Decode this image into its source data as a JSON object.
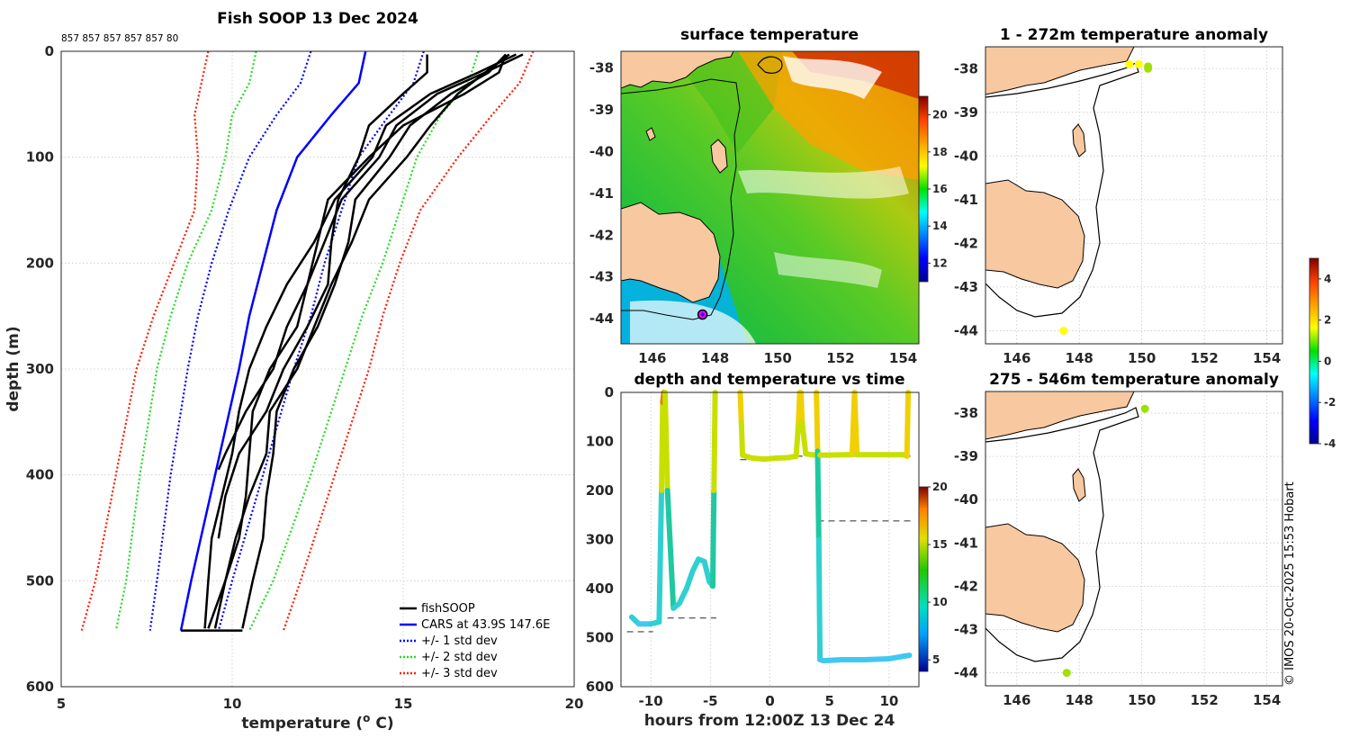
{
  "figure": {
    "copyright": "© IMOS 20-Oct-2025 15:53 Hobart"
  },
  "chart_data": [
    {
      "id": "profile",
      "type": "line",
      "title": "Fish SOOP 13 Dec 2024",
      "probe_ids": "857 857 857 857 857 80",
      "xlabel": "temperature (o C)",
      "ylabel": "depth (m)",
      "xlim": [
        5,
        20
      ],
      "ylim": [
        600,
        0
      ],
      "xticks": [
        "5",
        "10",
        "15",
        "20"
      ],
      "yticks": [
        "0",
        "100",
        "200",
        "300",
        "400",
        "500",
        "600"
      ],
      "legend": [
        "fishSOOP",
        "CARS at 43.9S 147.6E",
        "+/- 1 std dev",
        "+/- 2 std dev",
        "+/- 3 std dev"
      ],
      "colors": {
        "fishsoop": "#000000",
        "cars": "#0000ff",
        "std1": "#0000ff",
        "std2": "#22dd22",
        "std3": "#ff1a00"
      },
      "series": [
        {
          "name": "CARS",
          "depth": [
            0,
            30,
            60,
            100,
            150,
            200,
            250,
            300,
            400,
            500,
            547
          ],
          "temp": [
            13.9,
            13.7,
            12.9,
            11.9,
            11.3,
            10.9,
            10.5,
            10.2,
            9.5,
            8.8,
            8.5
          ]
        },
        {
          "name": "CARS+1",
          "depth": [
            0,
            30,
            60,
            100,
            150,
            200,
            250,
            300,
            400,
            500,
            547
          ],
          "temp": [
            15.6,
            15.3,
            14.6,
            13.7,
            13.2,
            12.7,
            12.3,
            11.8,
            10.9,
            10.0,
            9.6
          ]
        },
        {
          "name": "CARS-1",
          "depth": [
            0,
            30,
            60,
            100,
            150,
            200,
            250,
            300,
            400,
            500,
            547
          ],
          "temp": [
            12.3,
            12.0,
            11.3,
            10.5,
            9.9,
            9.4,
            9.0,
            8.7,
            8.2,
            7.8,
            7.6
          ]
        },
        {
          "name": "CARS+2",
          "depth": [
            0,
            30,
            60,
            100,
            150,
            200,
            250,
            300,
            400,
            500,
            547
          ],
          "temp": [
            17.2,
            16.9,
            16.1,
            15.4,
            14.9,
            14.4,
            13.8,
            13.3,
            12.3,
            11.2,
            10.5
          ]
        },
        {
          "name": "CARS-2",
          "depth": [
            0,
            30,
            60,
            100,
            150,
            200,
            250,
            300,
            400,
            500,
            547
          ],
          "temp": [
            10.7,
            10.5,
            10.0,
            9.8,
            9.4,
            8.7,
            8.2,
            7.8,
            7.3,
            6.9,
            6.6
          ]
        },
        {
          "name": "CARS+3",
          "depth": [
            0,
            30,
            60,
            100,
            150,
            200,
            250,
            300,
            400,
            500,
            547
          ],
          "temp": [
            18.8,
            18.4,
            17.6,
            16.6,
            15.5,
            14.9,
            14.4,
            14.0,
            13.0,
            12.0,
            11.5
          ]
        },
        {
          "name": "CARS-3",
          "depth": [
            0,
            30,
            60,
            100,
            150,
            200,
            250,
            300,
            400,
            500,
            547
          ],
          "temp": [
            9.3,
            9.1,
            8.9,
            9.0,
            8.9,
            8.3,
            7.7,
            7.2,
            6.6,
            6.0,
            5.6
          ]
        },
        {
          "name": "fishSOOP-1",
          "depth": [
            3,
            20,
            40,
            70,
            100,
            140,
            180,
            220,
            260,
            300,
            340,
            380,
            420,
            460,
            500,
            545
          ],
          "temp": [
            18.0,
            17.5,
            16.4,
            15.2,
            14.6,
            13.6,
            13.4,
            13.0,
            12.5,
            11.8,
            11.3,
            11.2,
            11.0,
            10.9,
            10.6,
            10.3
          ]
        },
        {
          "name": "fishSOOP-2",
          "depth": [
            3,
            20,
            40,
            70,
            100,
            140,
            180,
            220,
            260,
            300,
            340,
            380,
            420,
            460,
            500,
            545
          ],
          "temp": [
            18.1,
            17.4,
            16.0,
            14.8,
            14.3,
            13.2,
            12.7,
            12.2,
            11.9,
            11.1,
            10.6,
            10.5,
            10.4,
            10.2,
            9.8,
            9.5
          ]
        },
        {
          "name": "fishSOOP-3",
          "depth": [
            3,
            20,
            40,
            70,
            100,
            140,
            180,
            220,
            260,
            300,
            340,
            380,
            420,
            460,
            500,
            545
          ],
          "temp": [
            18.3,
            17.2,
            15.8,
            14.5,
            14.1,
            13.0,
            12.4,
            11.6,
            11.0,
            10.5,
            10.2,
            10.0,
            9.7,
            9.4,
            9.3,
            9.2
          ]
        },
        {
          "name": "fishSOOP-4",
          "depth": [
            3,
            20,
            40,
            70,
            100,
            140,
            180,
            220,
            260,
            300,
            340,
            380,
            420,
            460
          ],
          "temp": [
            15.7,
            15.7,
            15.0,
            14.0,
            13.7,
            13.1,
            12.9,
            12.8,
            12.2,
            11.5,
            11.0,
            10.2,
            9.8,
            9.6
          ]
        },
        {
          "name": "fishSOOP-5",
          "depth": [
            3,
            20,
            40,
            70,
            100,
            140,
            180,
            220,
            260,
            300,
            340,
            380,
            395
          ],
          "temp": [
            18.0,
            17.8,
            16.8,
            15.0,
            14.0,
            12.8,
            12.5,
            12.2,
            11.6,
            11.2,
            10.4,
            9.8,
            9.6
          ]
        },
        {
          "name": "fishSOOP-6",
          "depth": [
            3,
            20,
            40,
            70,
            100,
            140,
            180,
            220,
            260,
            300,
            340,
            380,
            420,
            460,
            500,
            545
          ],
          "temp": [
            18.5,
            17.4,
            16.6,
            15.8,
            15.1,
            14.0,
            13.5,
            12.9,
            12.4,
            11.9,
            11.1,
            11.0,
            10.5,
            10.1,
            9.8,
            9.3
          ]
        }
      ]
    },
    {
      "id": "sst",
      "type": "heatmap",
      "title": "surface temperature",
      "xticks": [
        "146",
        "148",
        "150",
        "152",
        "154"
      ],
      "yticks": [
        "-38",
        "-39",
        "-40",
        "-41",
        "-42",
        "-43",
        "-44"
      ],
      "xlim": [
        145,
        154.5
      ],
      "ylim": [
        -44.6,
        -37.6
      ],
      "colorbar": {
        "ticks": [
          "12",
          "14",
          "16",
          "18",
          "20"
        ],
        "range": [
          11,
          21
        ]
      },
      "marker": {
        "lon": 147.6,
        "lat": -43.9
      }
    },
    {
      "id": "timeseries",
      "type": "scatter",
      "title": "depth and temperature vs time",
      "xlabel": "hours from 12:00Z 13 Dec 24",
      "xticks": [
        "-10",
        "-5",
        "0",
        "5",
        "10"
      ],
      "yticks": [
        "0",
        "100",
        "200",
        "300",
        "400",
        "500",
        "600"
      ],
      "xlim": [
        -12.5,
        12.5
      ],
      "ylim": [
        600,
        0
      ],
      "colorbar": {
        "ticks": [
          "5",
          "10",
          "15",
          "20"
        ],
        "range": [
          4,
          20
        ]
      },
      "bottom_depth_lines": [
        {
          "x": [
            -12,
            -9.8
          ],
          "depth": 488
        },
        {
          "x": [
            -8.6,
            -4.5
          ],
          "depth": 460
        },
        {
          "x": [
            -2.5,
            2
          ],
          "depth": 137
        },
        {
          "x": [
            2.2,
            12
          ],
          "depth": 130
        },
        {
          "x": [
            4,
            12
          ],
          "depth": 262
        }
      ],
      "tracks": [
        {
          "t": [
            -11.6,
            -11,
            -10,
            -9.3,
            -9.1,
            -9.0,
            -8.9,
            -8.85
          ],
          "depth": [
            458,
            472,
            472,
            468,
            200,
            20,
            0,
            0
          ]
        },
        {
          "t": [
            -8.8,
            -8.6,
            -8.1,
            -7.6,
            -7.0,
            -6.5,
            -6.0,
            -5.5,
            -5.1,
            -4.8,
            -4.7,
            -4.6
          ],
          "depth": [
            0,
            200,
            440,
            430,
            400,
            365,
            340,
            345,
            385,
            395,
            200,
            0
          ]
        },
        {
          "t": [
            -2.5,
            -2.4,
            -2.3,
            -1.5,
            -0.5,
            0.5,
            1.5,
            2.2,
            2.4,
            2.5
          ],
          "depth": [
            0,
            60,
            128,
            134,
            136,
            134,
            133,
            130,
            60,
            0
          ]
        },
        {
          "t": [
            2.6,
            2.7,
            3.0,
            3.5,
            3.9
          ],
          "depth": [
            0,
            60,
            125,
            127,
            128
          ]
        },
        {
          "t": [
            3.9,
            4.0,
            4.1,
            4.2,
            4.5,
            6,
            8,
            10,
            11.2,
            11.7
          ],
          "depth": [
            0,
            120,
            300,
            545,
            547,
            545,
            545,
            543,
            538,
            536
          ]
        },
        {
          "t": [
            4.2,
            6.5,
            6.9,
            7.1,
            7.3,
            9,
            11.2,
            11.5,
            11.6
          ],
          "depth": [
            128,
            127,
            127,
            0,
            127,
            127,
            127,
            130,
            0
          ]
        }
      ]
    },
    {
      "id": "anom1",
      "type": "scatter",
      "title": "1 - 272m temperature anomaly",
      "xticks": [
        "146",
        "148",
        "150",
        "152",
        "154"
      ],
      "yticks": [
        "-38",
        "-39",
        "-40",
        "-41",
        "-42",
        "-43",
        "-44"
      ],
      "xlim": [
        145,
        154.5
      ],
      "ylim": [
        -44.3,
        -37.5
      ],
      "points": [
        {
          "lon": 149.6,
          "lat": -37.9,
          "anom": 2.3
        },
        {
          "lon": 149.9,
          "lat": -37.9,
          "anom": 1.7
        },
        {
          "lon": 150.2,
          "lat": -38.0,
          "anom": 0.5
        },
        {
          "lon": 150.2,
          "lat": -37.95,
          "anom": 0.3
        },
        {
          "lon": 147.5,
          "lat": -44.0,
          "anom": 2.0
        }
      ]
    },
    {
      "id": "anom2",
      "type": "scatter",
      "title": "275 - 546m temperature anomaly",
      "xticks": [
        "146",
        "148",
        "150",
        "152",
        "154"
      ],
      "yticks": [
        "-38",
        "-39",
        "-40",
        "-41",
        "-42",
        "-43",
        "-44"
      ],
      "xlim": [
        145,
        154.5
      ],
      "ylim": [
        -44.3,
        -37.5
      ],
      "points": [
        {
          "lon": 150.1,
          "lat": -37.9,
          "anom": 0.3
        },
        {
          "lon": 147.6,
          "lat": -44.0,
          "anom": 1.0
        }
      ]
    },
    {
      "id": "anom_colorbar",
      "type": "heatmap",
      "ticks": [
        "4",
        "2",
        "0",
        "-2",
        "-4"
      ],
      "range": [
        -4,
        5
      ]
    }
  ]
}
